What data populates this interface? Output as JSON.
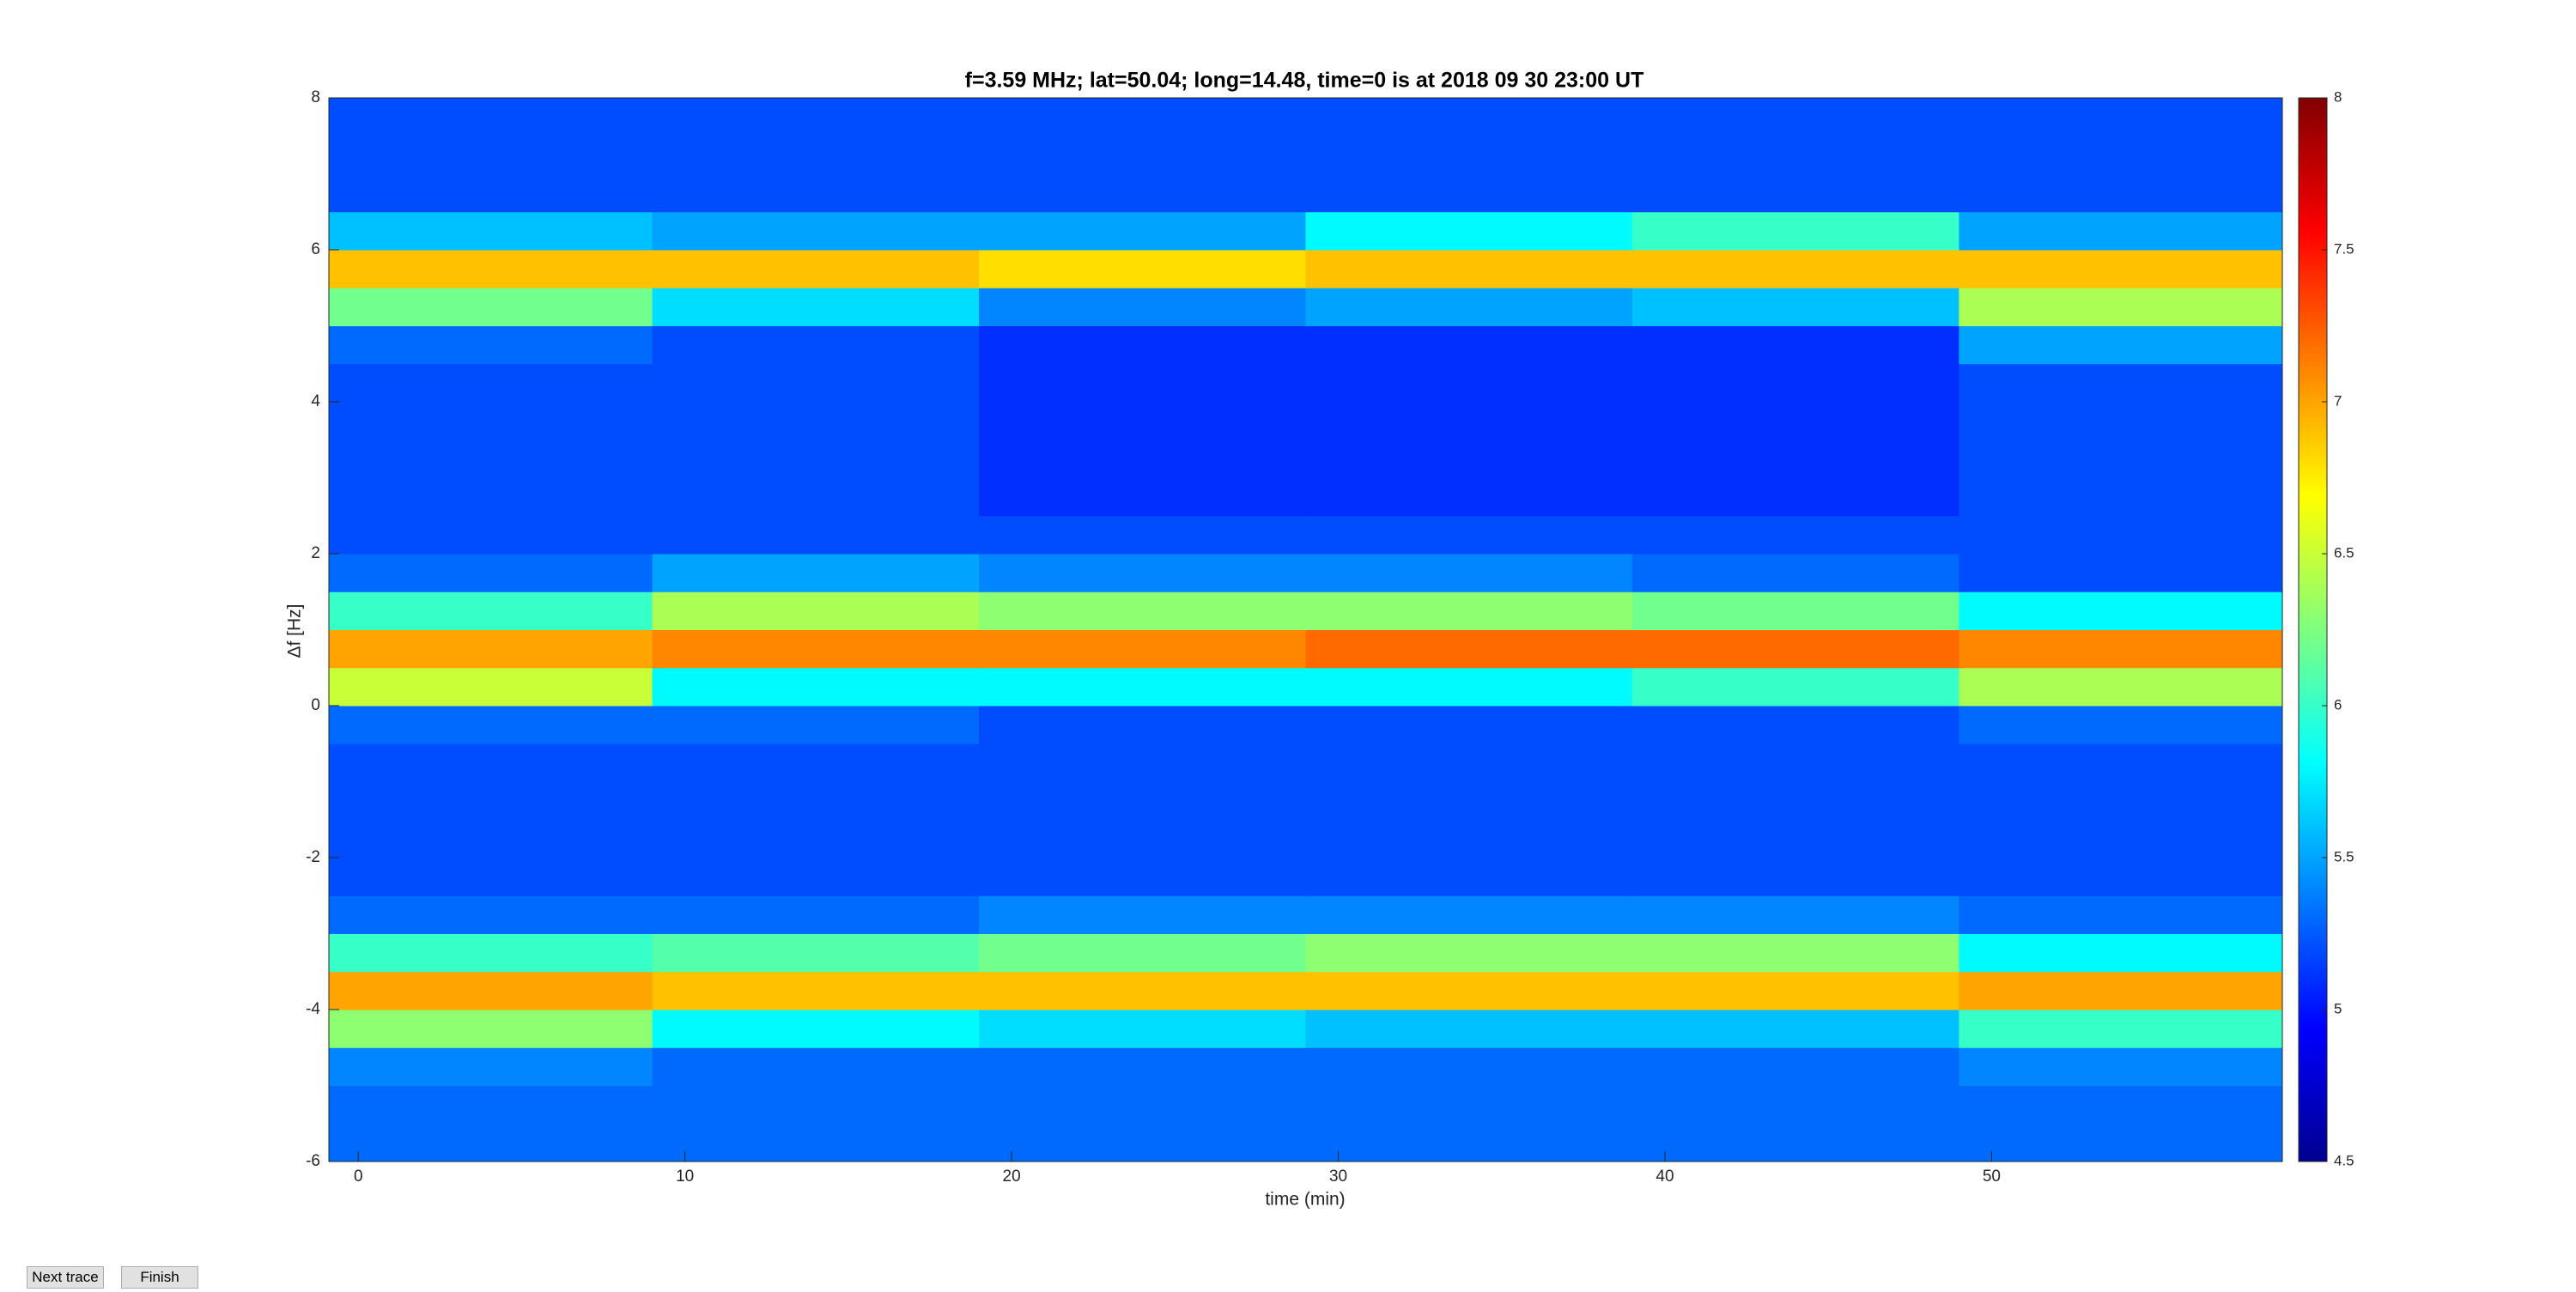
{
  "chart_data": {
    "type": "heatmap",
    "title": "f=3.59 MHz;  lat=50.04; long=14.48, time=0 is at 2018 09 30 23:00 UT",
    "xlabel": "time (min)",
    "ylabel": "Δf [Hz]",
    "xlim": [
      -0.9,
      58.9
    ],
    "xticks": [
      0,
      10,
      20,
      30,
      40,
      50
    ],
    "ylim": [
      -6,
      8
    ],
    "yticks": [
      -6,
      -4,
      -2,
      0,
      2,
      4,
      6,
      8
    ],
    "x_bins": [
      -0.9,
      9,
      19,
      29,
      39,
      49,
      58.9
    ],
    "y_bins": [
      -6,
      -5.5,
      -5,
      -4.5,
      -4,
      -3.5,
      -3,
      -2.5,
      -2,
      -1.5,
      -1,
      -0.5,
      0,
      0.5,
      1,
      1.5,
      2,
      2.5,
      3,
      3.5,
      4,
      4.5,
      5,
      5.5,
      6,
      6.5,
      7,
      7.5,
      8
    ],
    "z": [
      [
        5.3,
        5.3,
        5.3,
        5.3,
        5.3,
        5.3
      ],
      [
        5.3,
        5.3,
        5.3,
        5.3,
        5.3,
        5.3
      ],
      [
        5.4,
        5.3,
        5.3,
        5.3,
        5.3,
        5.4
      ],
      [
        6.3,
        5.8,
        5.7,
        5.6,
        5.6,
        6.0
      ],
      [
        7.0,
        6.9,
        6.9,
        6.9,
        6.9,
        7.0
      ],
      [
        6.0,
        6.1,
        6.2,
        6.3,
        6.3,
        5.8
      ],
      [
        5.3,
        5.3,
        5.4,
        5.4,
        5.4,
        5.3
      ],
      [
        5.2,
        5.2,
        5.2,
        5.2,
        5.2,
        5.2
      ],
      [
        5.2,
        5.2,
        5.2,
        5.2,
        5.2,
        5.2
      ],
      [
        5.2,
        5.2,
        5.2,
        5.2,
        5.2,
        5.2
      ],
      [
        5.2,
        5.2,
        5.2,
        5.2,
        5.2,
        5.2
      ],
      [
        5.3,
        5.3,
        5.2,
        5.2,
        5.2,
        5.3
      ],
      [
        6.5,
        5.8,
        5.8,
        5.8,
        6.0,
        6.4
      ],
      [
        7.0,
        7.1,
        7.1,
        7.2,
        7.2,
        7.1
      ],
      [
        6.0,
        6.4,
        6.3,
        6.3,
        6.2,
        5.8
      ],
      [
        5.3,
        5.5,
        5.4,
        5.4,
        5.3,
        5.2
      ],
      [
        5.2,
        5.2,
        5.2,
        5.2,
        5.2,
        5.2
      ],
      [
        5.2,
        5.2,
        5.1,
        5.1,
        5.1,
        5.2
      ],
      [
        5.2,
        5.2,
        5.1,
        5.1,
        5.1,
        5.2
      ],
      [
        5.2,
        5.2,
        5.1,
        5.1,
        5.1,
        5.2
      ],
      [
        5.2,
        5.2,
        5.1,
        5.1,
        5.1,
        5.2
      ],
      [
        5.3,
        5.2,
        5.1,
        5.1,
        5.1,
        5.5
      ],
      [
        6.2,
        5.7,
        5.4,
        5.5,
        5.6,
        6.4
      ],
      [
        6.9,
        6.9,
        6.8,
        6.9,
        6.9,
        6.9
      ],
      [
        5.6,
        5.5,
        5.5,
        5.8,
        6.0,
        5.5
      ],
      [
        5.2,
        5.2,
        5.2,
        5.2,
        5.2,
        5.2
      ],
      [
        5.2,
        5.2,
        5.2,
        5.2,
        5.2,
        5.2
      ],
      [
        5.2,
        5.2,
        5.2,
        5.2,
        5.2,
        5.2
      ]
    ],
    "colormap": "jet",
    "colorbar": {
      "lim": [
        4.5,
        8
      ],
      "ticks": [
        4.5,
        5,
        5.5,
        6,
        6.5,
        7,
        7.5,
        8
      ]
    }
  },
  "buttons": [
    "Next trace",
    "Finish"
  ]
}
